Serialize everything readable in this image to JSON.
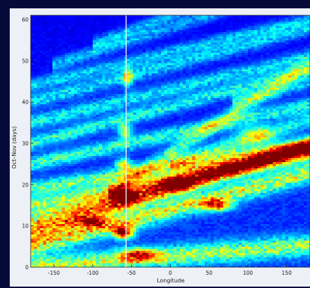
{
  "chart_data": {
    "type": "heatmap",
    "title": "",
    "xlabel": "Longitude",
    "ylabel": "Oct–Nov (days)",
    "xlim": [
      -180,
      180
    ],
    "ylim": [
      0,
      61
    ],
    "x_ticks": [
      -150,
      -100,
      -50,
      0,
      50,
      100,
      150
    ],
    "y_ticks": [
      0,
      10,
      20,
      30,
      40,
      50,
      60
    ],
    "x_tick_labels": [
      "-150",
      "-100",
      "-50",
      "0",
      "50",
      "100",
      "150"
    ],
    "y_tick_labels": [
      "0",
      "10",
      "20",
      "30",
      "40",
      "50",
      "60"
    ],
    "vertical_reference_line_x": -57,
    "colormap": "jet",
    "grid": false,
    "colors": {
      "background": "#050a3a",
      "plot_base": "#0a2c9a",
      "reference_line": "#ffffff",
      "axis_text": "#202020"
    },
    "intensity_bands": [
      {
        "x_start": -180,
        "y_start": 0,
        "slope": 0.015,
        "width": 2.5,
        "intensity": 0.48
      },
      {
        "x_start": -180,
        "y_start": 5,
        "slope": 0.05,
        "width": 2.5,
        "intensity": 0.62
      },
      {
        "x_start": -180,
        "y_start": 8,
        "slope": 0.06,
        "width": 2.0,
        "intensity": 0.55
      },
      {
        "x_start": -180,
        "y_start": 11,
        "slope": 0.05,
        "width": 2.2,
        "intensity": 0.6
      },
      {
        "x_start": -180,
        "y_start": 15,
        "slope": 0.035,
        "width": 2.0,
        "intensity": 0.5
      },
      {
        "x_start": -180,
        "y_start": 19,
        "slope": 0.03,
        "width": 1.8,
        "intensity": 0.5
      },
      {
        "x_start": -180,
        "y_start": 25,
        "slope": 0.04,
        "width": 1.8,
        "intensity": 0.45
      },
      {
        "x_start": -180,
        "y_start": 30,
        "slope": 0.05,
        "width": 1.8,
        "intensity": 0.45
      },
      {
        "x_start": -180,
        "y_start": 35,
        "slope": 0.045,
        "width": 1.8,
        "intensity": 0.42
      },
      {
        "x_start": -180,
        "y_start": 40,
        "slope": 0.05,
        "width": 1.8,
        "intensity": 0.42
      },
      {
        "x_start": -180,
        "y_start": 44,
        "slope": 0.045,
        "width": 1.6,
        "intensity": 0.4
      },
      {
        "x_start": -150,
        "y_start": 49,
        "slope": 0.06,
        "width": 1.6,
        "intensity": 0.38
      },
      {
        "x_start": -100,
        "y_start": 54,
        "slope": 0.07,
        "width": 1.5,
        "intensity": 0.4
      },
      {
        "x_start": -80,
        "y_start": 18,
        "slope": 0.12,
        "width": 2.0,
        "intensity": 0.45
      },
      {
        "x_start": 0,
        "y_start": 25,
        "slope": 0.06,
        "width": 2.0,
        "intensity": 0.42
      },
      {
        "x_start": 80,
        "y_start": 40,
        "slope": 0.05,
        "width": 1.8,
        "intensity": 0.35
      }
    ],
    "hotspots": [
      {
        "x": -60,
        "y": 8.5,
        "rx": 12,
        "ry": 1.5,
        "intensity": 1.0
      },
      {
        "x": -58,
        "y": 17,
        "rx": 12,
        "ry": 1.5,
        "intensity": 0.95
      },
      {
        "x": 10,
        "y": 20,
        "rx": 15,
        "ry": 1.4,
        "intensity": 0.72
      },
      {
        "x": 60,
        "y": 15,
        "rx": 18,
        "ry": 1.4,
        "intensity": 0.7
      },
      {
        "x": -60,
        "y": 25,
        "rx": 10,
        "ry": 1.5,
        "intensity": 0.62
      },
      {
        "x": -58,
        "y": 33,
        "rx": 8,
        "ry": 1.8,
        "intensity": 0.65
      },
      {
        "x": -55,
        "y": 46,
        "rx": 6,
        "ry": 2.2,
        "intensity": 0.7
      },
      {
        "x": -40,
        "y": 3,
        "rx": 25,
        "ry": 1.5,
        "intensity": 0.62
      },
      {
        "x": -100,
        "y": 11,
        "rx": 20,
        "ry": 1.3,
        "intensity": 0.6
      },
      {
        "x": 110,
        "y": 32,
        "rx": 25,
        "ry": 2.2,
        "intensity": 0.42
      }
    ]
  }
}
